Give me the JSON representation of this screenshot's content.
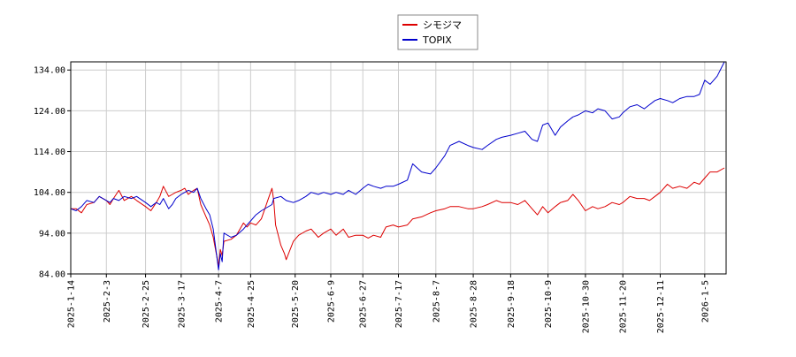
{
  "chart_data": {
    "type": "line",
    "title": "",
    "xlabel": "",
    "ylabel": "",
    "ylim": [
      84,
      136
    ],
    "yticks": [
      84,
      94,
      104,
      114,
      124,
      134
    ],
    "ytick_labels": [
      "84.00",
      "94.00",
      "104.00",
      "114.00",
      "124.00",
      "134.00"
    ],
    "xlim": [
      "2025-01-14",
      "2026-01-17"
    ],
    "xticks": [
      "2025-01-14",
      "2025-02-03",
      "2025-02-25",
      "2025-03-17",
      "2025-04-07",
      "2025-04-25",
      "2025-05-20",
      "2025-06-09",
      "2025-06-27",
      "2025-07-17",
      "2025-08-07",
      "2025-08-28",
      "2025-09-18",
      "2025-10-09",
      "2025-10-30",
      "2025-11-20",
      "2025-12-11",
      "2026-01-05"
    ],
    "xtick_labels": [
      "2025-1-14",
      "2025-2-3",
      "2025-2-25",
      "2025-3-17",
      "2025-4-7",
      "2025-4-25",
      "2025-5-20",
      "2025-6-9",
      "2025-6-27",
      "2025-7-17",
      "2025-8-7",
      "2025-8-28",
      "2025-9-18",
      "2025-10-9",
      "2025-10-30",
      "2025-11-20",
      "2025-12-11",
      "2026-1-5"
    ],
    "grid": true,
    "legend": "top-center",
    "series": [
      {
        "name": "シモジマ",
        "color": "#dd0000",
        "points": [
          [
            "2025-01-14",
            100.0
          ],
          [
            "2025-01-17",
            100.0
          ],
          [
            "2025-01-20",
            99.0
          ],
          [
            "2025-01-23",
            101.0
          ],
          [
            "2025-01-27",
            101.5
          ],
          [
            "2025-01-30",
            103.0
          ],
          [
            "2025-02-03",
            102.0
          ],
          [
            "2025-02-05",
            101.0
          ],
          [
            "2025-02-07",
            102.5
          ],
          [
            "2025-02-10",
            104.5
          ],
          [
            "2025-02-13",
            102.0
          ],
          [
            "2025-02-17",
            103.0
          ],
          [
            "2025-02-20",
            102.0
          ],
          [
            "2025-02-25",
            100.5
          ],
          [
            "2025-02-28",
            99.5
          ],
          [
            "2025-03-03",
            101.5
          ],
          [
            "2025-03-05",
            103.0
          ],
          [
            "2025-03-07",
            105.5
          ],
          [
            "2025-03-10",
            103.0
          ],
          [
            "2025-03-12",
            103.5
          ],
          [
            "2025-03-14",
            104.0
          ],
          [
            "2025-03-17",
            104.5
          ],
          [
            "2025-03-19",
            105.0
          ],
          [
            "2025-03-21",
            103.5
          ],
          [
            "2025-03-24",
            104.5
          ],
          [
            "2025-03-26",
            105.0
          ],
          [
            "2025-03-28",
            101.0
          ],
          [
            "2025-03-31",
            98.0
          ],
          [
            "2025-04-02",
            96.0
          ],
          [
            "2025-04-04",
            93.0
          ],
          [
            "2025-04-07",
            86.0
          ],
          [
            "2025-04-08",
            90.0
          ],
          [
            "2025-04-09",
            88.5
          ],
          [
            "2025-04-10",
            92.0
          ],
          [
            "2025-04-14",
            92.5
          ],
          [
            "2025-04-17",
            93.5
          ],
          [
            "2025-04-21",
            96.5
          ],
          [
            "2025-04-23",
            95.5
          ],
          [
            "2025-04-25",
            96.5
          ],
          [
            "2025-04-28",
            96.0
          ],
          [
            "2025-05-01",
            97.5
          ],
          [
            "2025-05-07",
            105.0
          ],
          [
            "2025-05-08",
            102.0
          ],
          [
            "2025-05-09",
            96.0
          ],
          [
            "2025-05-12",
            91.0
          ],
          [
            "2025-05-14",
            89.0
          ],
          [
            "2025-05-15",
            87.5
          ],
          [
            "2025-05-19",
            92.0
          ],
          [
            "2025-05-22",
            93.5
          ],
          [
            "2025-05-26",
            94.5
          ],
          [
            "2025-05-29",
            95.0
          ],
          [
            "2025-06-02",
            93.0
          ],
          [
            "2025-06-05",
            94.0
          ],
          [
            "2025-06-09",
            95.0
          ],
          [
            "2025-06-12",
            93.5
          ],
          [
            "2025-06-16",
            95.0
          ],
          [
            "2025-06-19",
            93.0
          ],
          [
            "2025-06-23",
            93.5
          ],
          [
            "2025-06-27",
            93.5
          ],
          [
            "2025-06-30",
            92.8
          ],
          [
            "2025-07-03",
            93.5
          ],
          [
            "2025-07-07",
            93.0
          ],
          [
            "2025-07-10",
            95.5
          ],
          [
            "2025-07-14",
            96.0
          ],
          [
            "2025-07-17",
            95.5
          ],
          [
            "2025-07-22",
            96.0
          ],
          [
            "2025-07-25",
            97.5
          ],
          [
            "2025-07-30",
            98.0
          ],
          [
            "2025-08-04",
            99.0
          ],
          [
            "2025-08-07",
            99.5
          ],
          [
            "2025-08-12",
            100.0
          ],
          [
            "2025-08-15",
            100.5
          ],
          [
            "2025-08-20",
            100.5
          ],
          [
            "2025-08-25",
            100.0
          ],
          [
            "2025-08-28",
            100.0
          ],
          [
            "2025-09-02",
            100.5
          ],
          [
            "2025-09-05",
            101.0
          ],
          [
            "2025-09-10",
            102.0
          ],
          [
            "2025-09-13",
            101.5
          ],
          [
            "2025-09-18",
            101.5
          ],
          [
            "2025-09-22",
            101.0
          ],
          [
            "2025-09-26",
            102.0
          ],
          [
            "2025-09-30",
            100.0
          ],
          [
            "2025-10-03",
            98.5
          ],
          [
            "2025-10-06",
            100.5
          ],
          [
            "2025-10-09",
            99.0
          ],
          [
            "2025-10-13",
            100.5
          ],
          [
            "2025-10-16",
            101.5
          ],
          [
            "2025-10-20",
            102.0
          ],
          [
            "2025-10-23",
            103.5
          ],
          [
            "2025-10-26",
            102.0
          ],
          [
            "2025-10-30",
            99.5
          ],
          [
            "2025-11-03",
            100.5
          ],
          [
            "2025-11-06",
            100.0
          ],
          [
            "2025-11-10",
            100.5
          ],
          [
            "2025-11-14",
            101.5
          ],
          [
            "2025-11-18",
            101.0
          ],
          [
            "2025-11-20",
            101.5
          ],
          [
            "2025-11-24",
            103.0
          ],
          [
            "2025-11-28",
            102.5
          ],
          [
            "2025-12-02",
            102.5
          ],
          [
            "2025-12-05",
            102.0
          ],
          [
            "2025-12-08",
            103.0
          ],
          [
            "2025-12-11",
            104.0
          ],
          [
            "2025-12-15",
            106.0
          ],
          [
            "2025-12-18",
            105.0
          ],
          [
            "2025-12-22",
            105.5
          ],
          [
            "2025-12-26",
            105.0
          ],
          [
            "2025-12-30",
            106.5
          ],
          [
            "2026-01-02",
            106.0
          ],
          [
            "2026-01-05",
            107.5
          ],
          [
            "2026-01-08",
            109.0
          ],
          [
            "2026-01-12",
            109.0
          ],
          [
            "2026-01-16",
            110.0
          ]
        ]
      },
      {
        "name": "TOPIX",
        "color": "#0000cc",
        "points": [
          [
            "2025-01-14",
            100.0
          ],
          [
            "2025-01-17",
            99.5
          ],
          [
            "2025-01-20",
            100.5
          ],
          [
            "2025-01-23",
            102.0
          ],
          [
            "2025-01-27",
            101.5
          ],
          [
            "2025-01-30",
            103.0
          ],
          [
            "2025-02-03",
            102.0
          ],
          [
            "2025-02-05",
            101.5
          ],
          [
            "2025-02-07",
            102.5
          ],
          [
            "2025-02-10",
            102.0
          ],
          [
            "2025-02-13",
            103.0
          ],
          [
            "2025-02-17",
            102.5
          ],
          [
            "2025-02-20",
            103.0
          ],
          [
            "2025-02-25",
            101.5
          ],
          [
            "2025-02-28",
            100.5
          ],
          [
            "2025-03-03",
            101.5
          ],
          [
            "2025-03-05",
            101.0
          ],
          [
            "2025-03-07",
            102.5
          ],
          [
            "2025-03-10",
            100.0
          ],
          [
            "2025-03-12",
            101.0
          ],
          [
            "2025-03-14",
            102.5
          ],
          [
            "2025-03-17",
            103.5
          ],
          [
            "2025-03-19",
            104.0
          ],
          [
            "2025-03-21",
            104.5
          ],
          [
            "2025-03-24",
            104.0
          ],
          [
            "2025-03-26",
            105.0
          ],
          [
            "2025-03-28",
            102.5
          ],
          [
            "2025-03-31",
            100.0
          ],
          [
            "2025-04-02",
            98.5
          ],
          [
            "2025-04-04",
            95.0
          ],
          [
            "2025-04-07",
            85.0
          ],
          [
            "2025-04-08",
            89.0
          ],
          [
            "2025-04-09",
            87.0
          ],
          [
            "2025-04-10",
            94.0
          ],
          [
            "2025-04-14",
            93.0
          ],
          [
            "2025-04-17",
            93.5
          ],
          [
            "2025-04-21",
            95.0
          ],
          [
            "2025-04-23",
            96.0
          ],
          [
            "2025-04-25",
            97.0
          ],
          [
            "2025-04-28",
            98.5
          ],
          [
            "2025-05-01",
            99.5
          ],
          [
            "2025-05-07",
            101.0
          ],
          [
            "2025-05-08",
            102.5
          ],
          [
            "2025-05-12",
            103.0
          ],
          [
            "2025-05-15",
            102.0
          ],
          [
            "2025-05-19",
            101.5
          ],
          [
            "2025-05-22",
            102.0
          ],
          [
            "2025-05-26",
            103.0
          ],
          [
            "2025-05-29",
            104.0
          ],
          [
            "2025-06-02",
            103.5
          ],
          [
            "2025-06-05",
            104.0
          ],
          [
            "2025-06-09",
            103.5
          ],
          [
            "2025-06-12",
            104.0
          ],
          [
            "2025-06-16",
            103.5
          ],
          [
            "2025-06-19",
            104.5
          ],
          [
            "2025-06-23",
            103.5
          ],
          [
            "2025-06-27",
            105.0
          ],
          [
            "2025-06-30",
            106.0
          ],
          [
            "2025-07-03",
            105.5
          ],
          [
            "2025-07-07",
            105.0
          ],
          [
            "2025-07-10",
            105.5
          ],
          [
            "2025-07-14",
            105.5
          ],
          [
            "2025-07-17",
            106.0
          ],
          [
            "2025-07-22",
            107.0
          ],
          [
            "2025-07-25",
            111.0
          ],
          [
            "2025-07-30",
            109.0
          ],
          [
            "2025-08-04",
            108.5
          ],
          [
            "2025-08-07",
            110.0
          ],
          [
            "2025-08-12",
            113.0
          ],
          [
            "2025-08-15",
            115.5
          ],
          [
            "2025-08-20",
            116.5
          ],
          [
            "2025-08-25",
            115.5
          ],
          [
            "2025-08-28",
            115.0
          ],
          [
            "2025-09-02",
            114.5
          ],
          [
            "2025-09-05",
            115.5
          ],
          [
            "2025-09-10",
            117.0
          ],
          [
            "2025-09-13",
            117.5
          ],
          [
            "2025-09-18",
            118.0
          ],
          [
            "2025-09-22",
            118.5
          ],
          [
            "2025-09-26",
            119.0
          ],
          [
            "2025-09-30",
            117.0
          ],
          [
            "2025-10-03",
            116.5
          ],
          [
            "2025-10-06",
            120.5
          ],
          [
            "2025-10-09",
            121.0
          ],
          [
            "2025-10-13",
            118.0
          ],
          [
            "2025-10-16",
            120.0
          ],
          [
            "2025-10-20",
            121.5
          ],
          [
            "2025-10-23",
            122.5
          ],
          [
            "2025-10-26",
            123.0
          ],
          [
            "2025-10-30",
            124.0
          ],
          [
            "2025-11-03",
            123.5
          ],
          [
            "2025-11-06",
            124.5
          ],
          [
            "2025-11-10",
            124.0
          ],
          [
            "2025-11-14",
            122.0
          ],
          [
            "2025-11-18",
            122.5
          ],
          [
            "2025-11-20",
            123.5
          ],
          [
            "2025-11-24",
            125.0
          ],
          [
            "2025-11-28",
            125.5
          ],
          [
            "2025-12-02",
            124.5
          ],
          [
            "2025-12-05",
            125.5
          ],
          [
            "2025-12-08",
            126.5
          ],
          [
            "2025-12-11",
            127.0
          ],
          [
            "2025-12-15",
            126.5
          ],
          [
            "2025-12-18",
            126.0
          ],
          [
            "2025-12-22",
            127.0
          ],
          [
            "2025-12-26",
            127.5
          ],
          [
            "2025-12-30",
            127.5
          ],
          [
            "2026-01-02",
            128.0
          ],
          [
            "2026-01-05",
            131.5
          ],
          [
            "2026-01-08",
            130.5
          ],
          [
            "2026-01-12",
            132.5
          ],
          [
            "2026-01-16",
            136.0
          ]
        ]
      }
    ]
  }
}
